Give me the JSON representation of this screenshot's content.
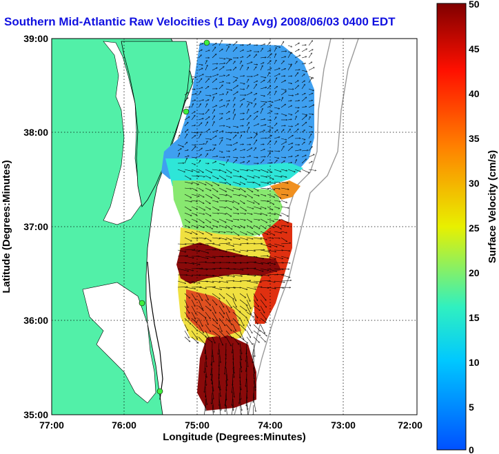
{
  "title": "Southern Mid-Atlantic Raw Velocities (1 Day Avg) 2008/06/03 0400 EDT",
  "map": {
    "xlabel": "Longitude (Degrees:Minutes)",
    "ylabel": "Latitude (Degrees:Minutes)",
    "x_ticks": [
      "77:00",
      "76:00",
      "75:00",
      "74:00",
      "73:00",
      "72:00"
    ],
    "y_ticks": [
      "39:00",
      "38:00",
      "37:00",
      "36:00",
      "35:00"
    ],
    "land_color": "#52f0a8",
    "water_color": "#ffffff"
  },
  "colorbar": {
    "label": "Surface Velocity (cm/s)",
    "ticks": [
      "50",
      "45",
      "40",
      "35",
      "30",
      "25",
      "20",
      "15",
      "10",
      "5",
      "0"
    ],
    "range": [
      0,
      50
    ],
    "colors": [
      "#0050ff",
      "#00c8ff",
      "#30f0c0",
      "#e8f000",
      "#ff8000",
      "#ff1000",
      "#800000"
    ]
  }
}
